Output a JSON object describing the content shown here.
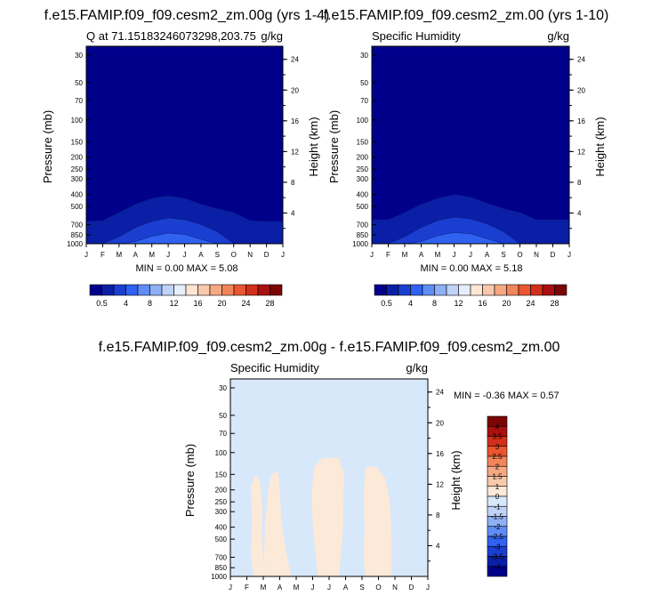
{
  "colors": {
    "contour_fill": [
      "#00008b",
      "#0a1fa5",
      "#1a3fd0",
      "#2f62f0",
      "#5f8cf6",
      "#8fb0f6",
      "#bfd2f7",
      "#e6eefb",
      "#fde7d4",
      "#f9c9ac",
      "#f6a882",
      "#f2845a",
      "#e9562f",
      "#d2301a",
      "#aa1010",
      "#7a0606"
    ],
    "panel_c": [
      "#00008b",
      "#0a1fa5",
      "#1a3fd0",
      "#2f62f0",
      "#5f8cf6",
      "#8fb0f6",
      "#bfd2f7",
      "#d7e8fb",
      "#fde9d8",
      "#f9c9ac",
      "#f6a882",
      "#f2845a",
      "#e9562f",
      "#d2301a",
      "#aa1010",
      "#7a0606"
    ]
  },
  "chart_data": [
    {
      "type": "heatmap",
      "title": "f.e15.FAMIP.f09_f09.cesm2_zm.00g (yrs 1-4)",
      "subtitle_left": "Q at 71.15183246073298,203.75",
      "subtitle_right": "g/kg",
      "xlabel": "",
      "ylabel": "Pressure (mb)",
      "ylabel_right": "Height (km)",
      "x_ticks": [
        "J",
        "F",
        "M",
        "A",
        "M",
        "J",
        "J",
        "A",
        "S",
        "O",
        "N",
        "D",
        "J"
      ],
      "y_ticks": [
        "30",
        "50",
        "70",
        "100",
        "150",
        "200",
        "250",
        "300",
        "400",
        "500",
        "700",
        "850",
        "1000"
      ],
      "y_ticks_right": [
        "24",
        "20",
        "16",
        "12",
        "8",
        "4"
      ],
      "stats": "MIN =   0.00 MAX =   5.08",
      "colorbar_labels": [
        "0.5",
        "4",
        "8",
        "12",
        "16",
        "20",
        "24",
        "28"
      ],
      "contour_tops_mb": {
        "level_0.5": [
          660,
          650,
          560,
          480,
          430,
          410,
          430,
          480,
          520,
          560,
          650,
          660,
          660
        ],
        "level_4": [
          1000,
          1000,
          880,
          740,
          660,
          620,
          640,
          700,
          800,
          1000,
          1000,
          1000,
          1000
        ],
        "level_8": [
          1000,
          1000,
          1000,
          960,
          870,
          820,
          840,
          920,
          1000,
          1000,
          1000,
          1000,
          1000
        ]
      }
    },
    {
      "type": "heatmap",
      "title": "f.e15.FAMIP.f09_f09.cesm2_zm.00 (yrs 1-10)",
      "subtitle_left": "Specific Humidity",
      "subtitle_right": "g/kg",
      "xlabel": "",
      "ylabel": "Pressure (mb)",
      "ylabel_right": "Height (km)",
      "x_ticks": [
        "J",
        "F",
        "M",
        "A",
        "M",
        "J",
        "J",
        "A",
        "S",
        "O",
        "N",
        "D",
        "J"
      ],
      "y_ticks": [
        "30",
        "50",
        "70",
        "100",
        "150",
        "200",
        "250",
        "300",
        "400",
        "500",
        "700",
        "850",
        "1000"
      ],
      "y_ticks_right": [
        "24",
        "20",
        "16",
        "12",
        "8",
        "4"
      ],
      "stats": "MIN =   0.00 MAX =   5.18",
      "colorbar_labels": [
        "0.5",
        "4",
        "8",
        "12",
        "16",
        "20",
        "24",
        "28"
      ],
      "contour_tops_mb": {
        "level_0.5": [
          640,
          640,
          560,
          480,
          430,
          400,
          420,
          470,
          520,
          560,
          640,
          640,
          640
        ],
        "level_4": [
          1000,
          1000,
          880,
          740,
          650,
          610,
          630,
          690,
          800,
          1000,
          1000,
          1000,
          1000
        ],
        "level_8": [
          1000,
          1000,
          1000,
          960,
          860,
          810,
          830,
          910,
          1000,
          1000,
          1000,
          1000,
          1000
        ]
      }
    },
    {
      "type": "heatmap",
      "title": "f.e15.FAMIP.f09_f09.cesm2_zm.00g - f.e15.FAMIP.f09_f09.cesm2_zm.00",
      "subtitle_left": "Specific Humidity",
      "subtitle_right": "g/kg",
      "xlabel": "",
      "ylabel": "Pressure (mb)",
      "ylabel_right": "Height (km)",
      "x_ticks": [
        "J",
        "F",
        "M",
        "A",
        "M",
        "J",
        "J",
        "A",
        "S",
        "O",
        "N",
        "D",
        "J"
      ],
      "y_ticks": [
        "30",
        "50",
        "70",
        "100",
        "150",
        "200",
        "250",
        "300",
        "400",
        "500",
        "700",
        "850",
        "1000"
      ],
      "y_ticks_right": [
        "24",
        "20",
        "16",
        "12",
        "8",
        "4"
      ],
      "stats": "MIN = -0.36 MAX =   0.57",
      "colorbar_labels": [
        "4",
        "3.5",
        "3",
        "2.5",
        "2",
        "1.5",
        "1",
        "0",
        "-1",
        "-1.5",
        "-2",
        "-2.5",
        "-3",
        "-3.5",
        "-4"
      ],
      "background_level": "-1 to 0",
      "positive_regions": "0 to 1 between about 130 and 1000 mb in late Feb–Mar, Apr–May, Jul–Sep and Nov–Dec"
    }
  ]
}
